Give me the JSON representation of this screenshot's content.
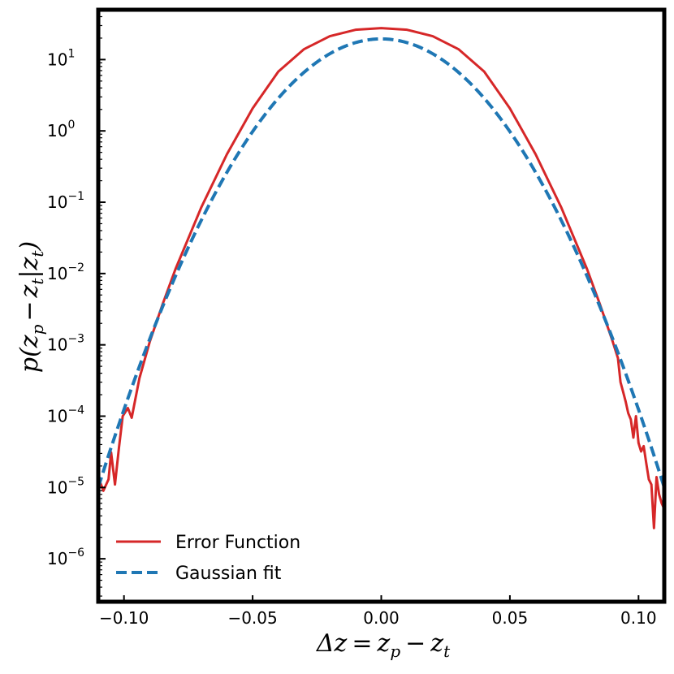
{
  "chart_data": {
    "type": "line",
    "title": "",
    "xlabel": "Δz = z_p − z_t",
    "ylabel": "p(z_p − z_t|z_t)",
    "xlim": [
      -0.11,
      0.11
    ],
    "ylim": [
      2.5e-07,
      50
    ],
    "yscale": "log",
    "grid": false,
    "legend_position": "bottom-left",
    "xticks": [
      -0.1,
      -0.05,
      0.0,
      0.05,
      0.1
    ],
    "xtick_labels": [
      "−0.10",
      "−0.05",
      "0.00",
      "0.05",
      "0.10"
    ],
    "yticks": [
      1e-06,
      1e-05,
      0.0001,
      0.001,
      0.01,
      0.1,
      1,
      10
    ],
    "ytick_labels": [
      {
        "base": "10",
        "exp": "−6"
      },
      {
        "base": "10",
        "exp": "−5"
      },
      {
        "base": "10",
        "exp": "−4"
      },
      {
        "base": "10",
        "exp": "−3"
      },
      {
        "base": "10",
        "exp": "−2"
      },
      {
        "base": "10",
        "exp": "−1"
      },
      {
        "base": "10",
        "exp": "0"
      },
      {
        "base": "10",
        "exp": "1"
      }
    ],
    "series": [
      {
        "name": "Error Function",
        "color": "#d62728",
        "style": "solid",
        "x": [
          -0.11,
          -0.108,
          -0.106,
          -0.105,
          -0.1035,
          -0.102,
          -0.1005,
          -0.0985,
          -0.097,
          -0.094,
          -0.09,
          -0.085,
          -0.08,
          -0.07,
          -0.06,
          -0.05,
          -0.04,
          -0.03,
          -0.02,
          -0.01,
          0.0,
          0.01,
          0.02,
          0.03,
          0.04,
          0.05,
          0.06,
          0.07,
          0.08,
          0.085,
          0.09,
          0.092,
          0.093,
          0.094,
          0.095,
          0.096,
          0.097,
          0.098,
          0.099,
          0.1,
          0.101,
          0.102,
          0.103,
          0.104,
          0.105,
          0.106,
          0.107,
          0.108,
          0.109,
          0.11
        ],
        "y": [
          1.4e-05,
          9e-06,
          1.3e-05,
          3.1e-05,
          1.1e-05,
          3.5e-05,
          0.0001,
          0.00013,
          9.5e-05,
          0.00034,
          0.0011,
          0.0037,
          0.0115,
          0.084,
          0.47,
          2.07,
          6.8,
          14.0,
          21.3,
          26.2,
          27.6,
          26.2,
          21.3,
          14.0,
          6.8,
          2.07,
          0.47,
          0.084,
          0.0115,
          0.0037,
          0.0011,
          0.00065,
          0.0003,
          0.00022,
          0.00016,
          0.00011,
          9e-05,
          5e-05,
          0.0001,
          4.2e-05,
          3.2e-05,
          3.8e-05,
          2.2e-05,
          1.3e-05,
          1.1e-05,
          2.7e-06,
          1.4e-05,
          8e-06,
          6e-06,
          5e-06
        ]
      },
      {
        "name": "Gaussian fit",
        "color": "#1f77b4",
        "style": "dashed",
        "mu": 0.0,
        "sigma": 0.02044,
        "amplitude": 19.5,
        "x_range": [
          -0.11,
          0.11
        ]
      }
    ]
  }
}
